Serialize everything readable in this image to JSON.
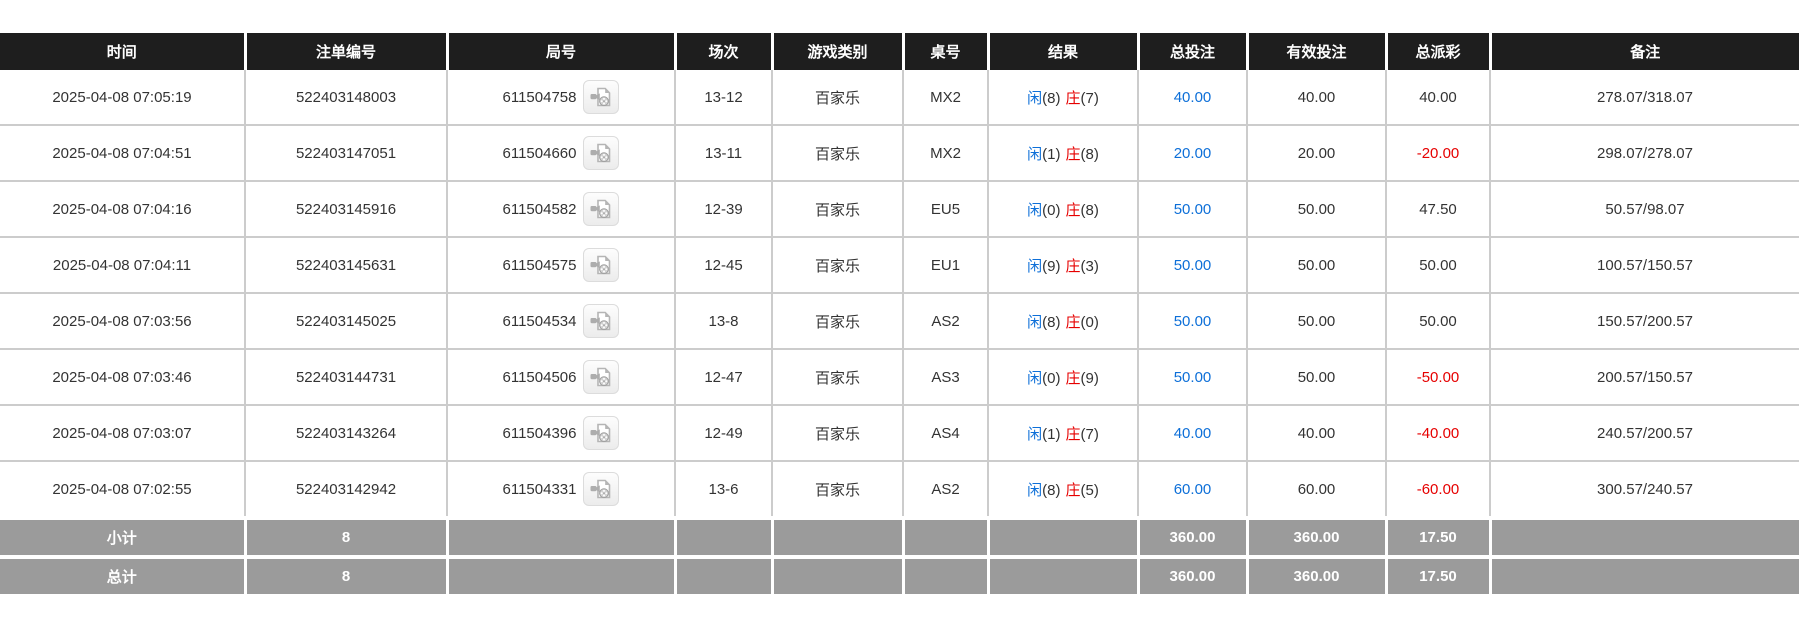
{
  "table": {
    "columns": [
      {
        "key": "time",
        "label": "时间"
      },
      {
        "key": "order_no",
        "label": "注单编号"
      },
      {
        "key": "round_no",
        "label": "局号"
      },
      {
        "key": "session",
        "label": "场次"
      },
      {
        "key": "game_type",
        "label": "游戏类别"
      },
      {
        "key": "table_no",
        "label": "桌号"
      },
      {
        "key": "result",
        "label": "结果"
      },
      {
        "key": "total_bet",
        "label": "总投注"
      },
      {
        "key": "valid_bet",
        "label": "有效投注"
      },
      {
        "key": "payout",
        "label": "总派彩"
      },
      {
        "key": "remark",
        "label": "备注"
      }
    ],
    "rows": [
      {
        "time": "2025-04-08 07:05:19",
        "order_no": "522403148003",
        "round_no": "611504758",
        "session": "13-12",
        "game_type": "百家乐",
        "table_no": "MX2",
        "result": {
          "player": "闲",
          "player_score": "(8)",
          "banker": "庄",
          "banker_score": "(7)"
        },
        "total_bet": "40.00",
        "valid_bet": "40.00",
        "payout": "40.00",
        "remark": "278.07/318.07"
      },
      {
        "time": "2025-04-08 07:04:51",
        "order_no": "522403147051",
        "round_no": "611504660",
        "session": "13-11",
        "game_type": "百家乐",
        "table_no": "MX2",
        "result": {
          "player": "闲",
          "player_score": "(1)",
          "banker": "庄",
          "banker_score": "(8)"
        },
        "total_bet": "20.00",
        "valid_bet": "20.00",
        "payout": "-20.00",
        "remark": "298.07/278.07"
      },
      {
        "time": "2025-04-08 07:04:16",
        "order_no": "522403145916",
        "round_no": "611504582",
        "session": "12-39",
        "game_type": "百家乐",
        "table_no": "EU5",
        "result": {
          "player": "闲",
          "player_score": "(0)",
          "banker": "庄",
          "banker_score": "(8)"
        },
        "total_bet": "50.00",
        "valid_bet": "50.00",
        "payout": "47.50",
        "remark": "50.57/98.07"
      },
      {
        "time": "2025-04-08 07:04:11",
        "order_no": "522403145631",
        "round_no": "611504575",
        "session": "12-45",
        "game_type": "百家乐",
        "table_no": "EU1",
        "result": {
          "player": "闲",
          "player_score": "(9)",
          "banker": "庄",
          "banker_score": "(3)"
        },
        "total_bet": "50.00",
        "valid_bet": "50.00",
        "payout": "50.00",
        "remark": "100.57/150.57"
      },
      {
        "time": "2025-04-08 07:03:56",
        "order_no": "522403145025",
        "round_no": "611504534",
        "session": "13-8",
        "game_type": "百家乐",
        "table_no": "AS2",
        "result": {
          "player": "闲",
          "player_score": "(8)",
          "banker": "庄",
          "banker_score": "(0)"
        },
        "total_bet": "50.00",
        "valid_bet": "50.00",
        "payout": "50.00",
        "remark": "150.57/200.57"
      },
      {
        "time": "2025-04-08 07:03:46",
        "order_no": "522403144731",
        "round_no": "611504506",
        "session": "12-47",
        "game_type": "百家乐",
        "table_no": "AS3",
        "result": {
          "player": "闲",
          "player_score": "(0)",
          "banker": "庄",
          "banker_score": "(9)"
        },
        "total_bet": "50.00",
        "valid_bet": "50.00",
        "payout": "-50.00",
        "remark": "200.57/150.57"
      },
      {
        "time": "2025-04-08 07:03:07",
        "order_no": "522403143264",
        "round_no": "611504396",
        "session": "12-49",
        "game_type": "百家乐",
        "table_no": "AS4",
        "result": {
          "player": "闲",
          "player_score": "(1)",
          "banker": "庄",
          "banker_score": "(7)"
        },
        "total_bet": "40.00",
        "valid_bet": "40.00",
        "payout": "-40.00",
        "remark": "240.57/200.57"
      },
      {
        "time": "2025-04-08 07:02:55",
        "order_no": "522403142942",
        "round_no": "611504331",
        "session": "13-6",
        "game_type": "百家乐",
        "table_no": "AS2",
        "result": {
          "player": "闲",
          "player_score": "(8)",
          "banker": "庄",
          "banker_score": "(5)"
        },
        "total_bet": "60.00",
        "valid_bet": "60.00",
        "payout": "-60.00",
        "remark": "300.57/240.57"
      }
    ],
    "summary": [
      {
        "label": "小计",
        "count": "8",
        "total_bet": "360.00",
        "valid_bet": "360.00",
        "payout": "17.50"
      },
      {
        "label": "总计",
        "count": "8",
        "total_bet": "360.00",
        "valid_bet": "360.00",
        "payout": "17.50"
      }
    ]
  },
  "icons": {
    "video_replay": "video-file-icon"
  },
  "colors": {
    "accent_blue": "#0d6fd8",
    "negative_red": "#e60000",
    "header_bg": "#1e1e1e",
    "summary_bg": "#9b9b9b",
    "grid_line": "#cccccc"
  }
}
